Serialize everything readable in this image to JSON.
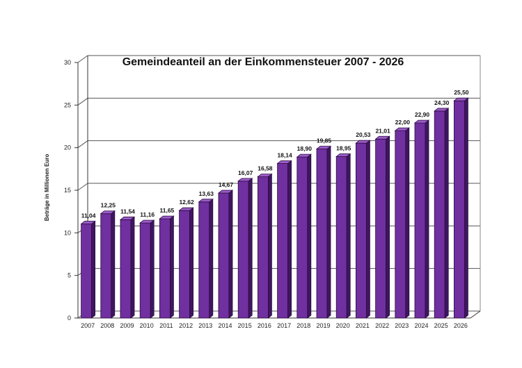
{
  "chart_data": {
    "type": "bar",
    "title": "Gemeindeanteil an der Einkommensteuer 2007 - 2026",
    "xlabel": "",
    "ylabel": "Beträge in Millionen Euro",
    "ylim": [
      0,
      30
    ],
    "yticks": [
      0,
      5,
      10,
      15,
      20,
      25,
      30
    ],
    "grid": true,
    "legend": "none",
    "bar_color": "#7030a0",
    "categories": [
      "2007",
      "2008",
      "2009",
      "2010",
      "2011",
      "2012",
      "2013",
      "2014",
      "2015",
      "2016",
      "2017",
      "2018",
      "2019",
      "2020",
      "2021",
      "2022",
      "2023",
      "2024",
      "2025",
      "2026"
    ],
    "values": [
      11.04,
      12.25,
      11.54,
      11.16,
      11.65,
      12.62,
      13.63,
      14.67,
      16.07,
      16.58,
      18.14,
      18.9,
      19.85,
      18.95,
      20.53,
      21.01,
      22.0,
      22.9,
      24.3,
      25.5
    ],
    "value_labels": [
      "11,04",
      "12,25",
      "11,54",
      "11,16",
      "11,65",
      "12,62",
      "13,63",
      "14,67",
      "16,07",
      "16,58",
      "18,14",
      "18,90",
      "19,85",
      "18,95",
      "20,53",
      "21,01",
      "22,00",
      "22,90",
      "24,30",
      "25,50"
    ]
  }
}
